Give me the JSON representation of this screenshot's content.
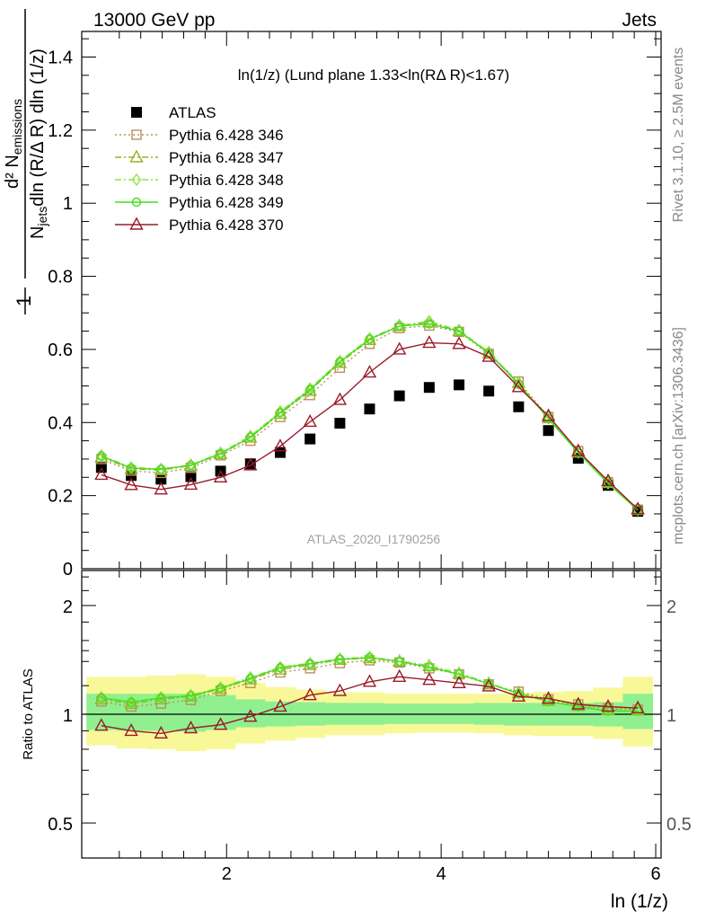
{
  "header": {
    "energy_label": "13000 GeV pp",
    "category_label": "Jets",
    "rivet_label": "Rivet 3.1.10, ≥ 2.5M events",
    "mcplots_label": "mcplots.cern.ch [arXiv:1306.3436]",
    "analysis_label": "ATLAS_2020_I1790256"
  },
  "chart_data": [
    {
      "type": "scatter",
      "panel": "main",
      "title": "ln(1/z) (Lund plane 1.33<ln(RΔ R)<1.67)",
      "ylabel": "1/N_jets d²N_emissions / dln(R/ΔR) dln(1/z)",
      "xlim": [
        0.65,
        6.05
      ],
      "ylim": [
        0,
        1.47
      ],
      "yticks": [
        0,
        0.2,
        0.4,
        0.6,
        0.8,
        1,
        1.2,
        1.4
      ],
      "yticklabels": [
        "0",
        "0.2",
        "0.4",
        "0.6",
        "0.8",
        "1",
        "1.2",
        "1.4"
      ],
      "x": [
        0.833,
        1.111,
        1.389,
        1.667,
        1.944,
        2.222,
        2.5,
        2.778,
        3.056,
        3.333,
        3.611,
        3.889,
        4.167,
        4.444,
        4.722,
        5.0,
        5.278,
        5.556,
        5.833
      ],
      "series": [
        {
          "name": "ATLAS",
          "color": "#000000",
          "marker": "filled-square",
          "line": "none",
          "values": [
            0.277,
            0.255,
            0.245,
            0.252,
            0.267,
            0.287,
            0.318,
            0.355,
            0.398,
            0.437,
            0.473,
            0.496,
            0.503,
            0.486,
            0.443,
            0.378,
            0.302,
            0.228,
            0.157
          ]
        },
        {
          "name": "Pythia 6.428 346",
          "color": "#b8905a",
          "marker": "open-square",
          "line": "dotted",
          "values": [
            0.3,
            0.268,
            0.262,
            0.276,
            0.31,
            0.35,
            0.415,
            0.475,
            0.55,
            0.615,
            0.658,
            0.665,
            0.648,
            0.588,
            0.512,
            0.415,
            0.322,
            0.237,
            0.162
          ]
        },
        {
          "name": "Pythia 6.428 347",
          "color": "#99b328",
          "marker": "open-triangle",
          "line": "dashdot",
          "values": [
            0.305,
            0.273,
            0.27,
            0.282,
            0.314,
            0.359,
            0.424,
            0.487,
            0.563,
            0.626,
            0.664,
            0.674,
            0.65,
            0.59,
            0.508,
            0.412,
            0.318,
            0.235,
            0.161
          ]
        },
        {
          "name": "Pythia 6.428 348",
          "color": "#8fe44a",
          "marker": "open-diamond",
          "line": "dashdot",
          "values": [
            0.31,
            0.277,
            0.273,
            0.284,
            0.317,
            0.363,
            0.43,
            0.493,
            0.568,
            0.63,
            0.666,
            0.677,
            0.653,
            0.593,
            0.508,
            0.412,
            0.318,
            0.234,
            0.161
          ]
        },
        {
          "name": "Pythia 6.428 349",
          "color": "#44e01c",
          "marker": "open-circle",
          "line": "solid",
          "values": [
            0.308,
            0.275,
            0.272,
            0.283,
            0.315,
            0.36,
            0.427,
            0.49,
            0.566,
            0.628,
            0.664,
            0.67,
            0.65,
            0.59,
            0.505,
            0.41,
            0.317,
            0.233,
            0.16
          ]
        },
        {
          "name": "Pythia 6.428 370",
          "color": "#9b1a2a",
          "marker": "open-triangle",
          "line": "solid",
          "values": [
            0.257,
            0.229,
            0.217,
            0.23,
            0.25,
            0.283,
            0.335,
            0.402,
            0.462,
            0.537,
            0.6,
            0.618,
            0.615,
            0.58,
            0.497,
            0.418,
            0.322,
            0.24,
            0.163
          ]
        }
      ]
    },
    {
      "type": "scatter",
      "panel": "ratio",
      "xlabel": "ln (1/z)",
      "ylabel": "Ratio to ATLAS",
      "ylog": true,
      "xlim": [
        0.65,
        6.05
      ],
      "ylim": [
        0.4,
        2.5
      ],
      "xticks": [
        2,
        4,
        6
      ],
      "xticklabels": [
        "2",
        "4",
        "6"
      ],
      "yticks": [
        0.5,
        1,
        2
      ],
      "yticklabels": [
        "0.5",
        "1",
        "2"
      ],
      "x": [
        0.833,
        1.111,
        1.389,
        1.667,
        1.944,
        2.222,
        2.5,
        2.778,
        3.056,
        3.333,
        3.611,
        3.889,
        4.167,
        4.444,
        4.722,
        5.0,
        5.278,
        5.556,
        5.833
      ],
      "bin_edges": [
        0.694,
        0.972,
        1.25,
        1.528,
        1.806,
        2.083,
        2.361,
        2.639,
        2.917,
        3.194,
        3.472,
        3.75,
        4.028,
        4.306,
        4.583,
        4.861,
        5.139,
        5.417,
        5.694,
        5.972
      ],
      "uncertainty_bands": [
        {
          "color": "#90f090",
          "lo": [
            0.905,
            0.9,
            0.9,
            0.895,
            0.905,
            0.92,
            0.925,
            0.93,
            0.935,
            0.935,
            0.94,
            0.94,
            0.94,
            0.935,
            0.93,
            0.93,
            0.93,
            0.925,
            0.91
          ],
          "hi": [
            1.14,
            1.14,
            1.14,
            1.14,
            1.13,
            1.1,
            1.085,
            1.08,
            1.075,
            1.075,
            1.07,
            1.07,
            1.07,
            1.075,
            1.075,
            1.075,
            1.075,
            1.08,
            1.14
          ]
        },
        {
          "color": "#f8f898",
          "lo": [
            0.82,
            0.805,
            0.8,
            0.79,
            0.8,
            0.83,
            0.845,
            0.86,
            0.875,
            0.875,
            0.885,
            0.89,
            0.89,
            0.885,
            0.875,
            0.87,
            0.87,
            0.855,
            0.815
          ],
          "hi": [
            1.27,
            1.27,
            1.28,
            1.29,
            1.27,
            1.22,
            1.19,
            1.17,
            1.15,
            1.15,
            1.14,
            1.14,
            1.14,
            1.14,
            1.145,
            1.155,
            1.16,
            1.185,
            1.27
          ]
        }
      ],
      "series": [
        {
          "name": "Pythia 6.428 346",
          "color": "#b8905a",
          "marker": "open-square",
          "line": "dotted",
          "values": [
            1.085,
            1.05,
            1.07,
            1.095,
            1.16,
            1.22,
            1.305,
            1.34,
            1.385,
            1.41,
            1.39,
            1.34,
            1.29,
            1.21,
            1.155,
            1.1,
            1.065,
            1.04,
            1.03
          ]
        },
        {
          "name": "Pythia 6.428 347",
          "color": "#99b328",
          "marker": "open-triangle",
          "line": "dashdot",
          "values": [
            1.1,
            1.07,
            1.1,
            1.12,
            1.175,
            1.25,
            1.33,
            1.37,
            1.415,
            1.43,
            1.4,
            1.36,
            1.295,
            1.215,
            1.145,
            1.09,
            1.055,
            1.03,
            1.025
          ]
        },
        {
          "name": "Pythia 6.428 348",
          "color": "#8fe44a",
          "marker": "open-diamond",
          "line": "dashdot",
          "values": [
            1.115,
            1.085,
            1.115,
            1.13,
            1.185,
            1.265,
            1.35,
            1.385,
            1.425,
            1.44,
            1.405,
            1.365,
            1.3,
            1.22,
            1.145,
            1.09,
            1.055,
            1.025,
            1.025
          ]
        },
        {
          "name": "Pythia 6.428 349",
          "color": "#44e01c",
          "marker": "open-circle",
          "line": "solid",
          "values": [
            1.11,
            1.08,
            1.11,
            1.125,
            1.18,
            1.255,
            1.345,
            1.38,
            1.42,
            1.435,
            1.4,
            1.35,
            1.29,
            1.215,
            1.14,
            1.085,
            1.05,
            1.02,
            1.02
          ]
        },
        {
          "name": "Pythia 6.428 370",
          "color": "#9b1a2a",
          "marker": "open-triangle",
          "line": "solid",
          "values": [
            0.93,
            0.9,
            0.885,
            0.915,
            0.935,
            0.985,
            1.05,
            1.13,
            1.16,
            1.23,
            1.27,
            1.245,
            1.22,
            1.195,
            1.12,
            1.105,
            1.065,
            1.05,
            1.04
          ]
        }
      ]
    }
  ]
}
